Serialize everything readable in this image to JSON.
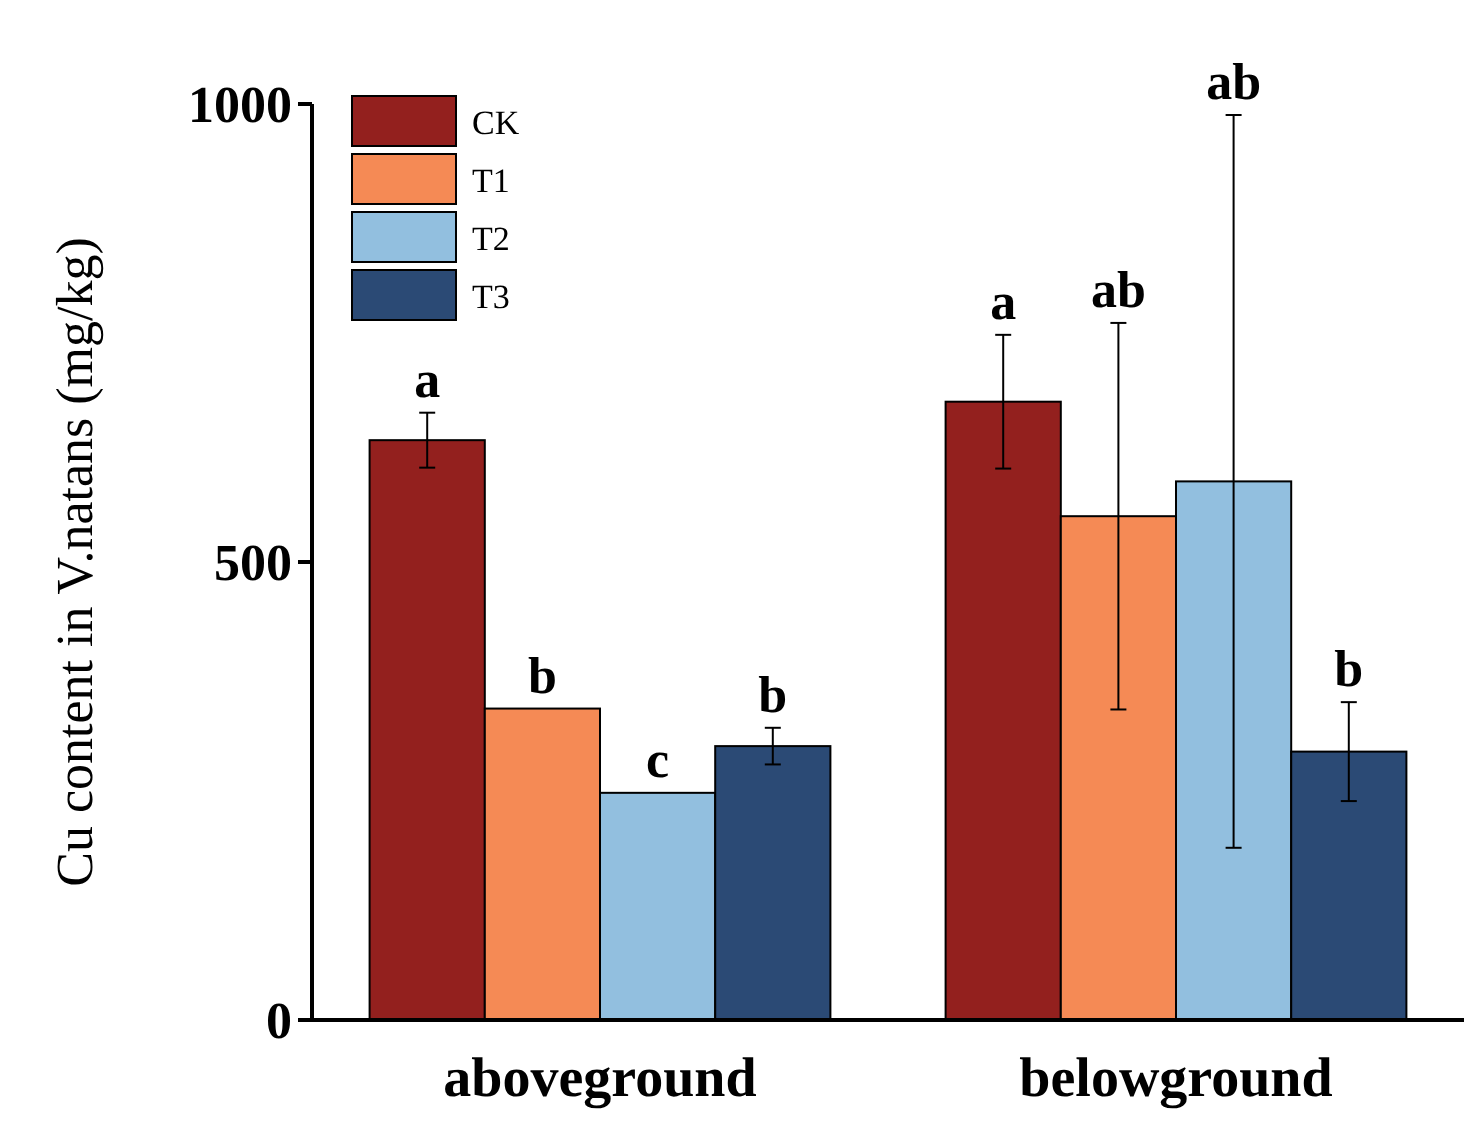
{
  "chart_data": {
    "type": "bar",
    "ylabel": "Cu content in V.natans (mg/kg)",
    "categories": [
      "aboveground",
      "belowground"
    ],
    "ylim": [
      0,
      1000
    ],
    "yticks": [
      0,
      500,
      1000
    ],
    "legend": "top left",
    "grid": false,
    "series": [
      {
        "name": "CK",
        "color": "#93201e",
        "values": [
          633,
          675
        ],
        "errors": [
          30,
          73
        ],
        "value_labels": [
          "a",
          "a"
        ]
      },
      {
        "name": "T1",
        "color": "#f58a55",
        "values": [
          340,
          550
        ],
        "errors": [
          null,
          211
        ],
        "value_labels": [
          "b",
          null
        ]
      },
      {
        "name": "T2",
        "color": "#92bfdf",
        "values": [
          248,
          588
        ],
        "errors": [
          null,
          400
        ],
        "value_labels": [
          "c",
          null
        ]
      },
      {
        "name": "T3",
        "color": "#2b4a75",
        "values": [
          299,
          293
        ],
        "errors": [
          20,
          54
        ],
        "value_labels": [
          "b",
          "b"
        ]
      }
    ],
    "annotations": [
      "ab",
      "ab"
    ]
  }
}
